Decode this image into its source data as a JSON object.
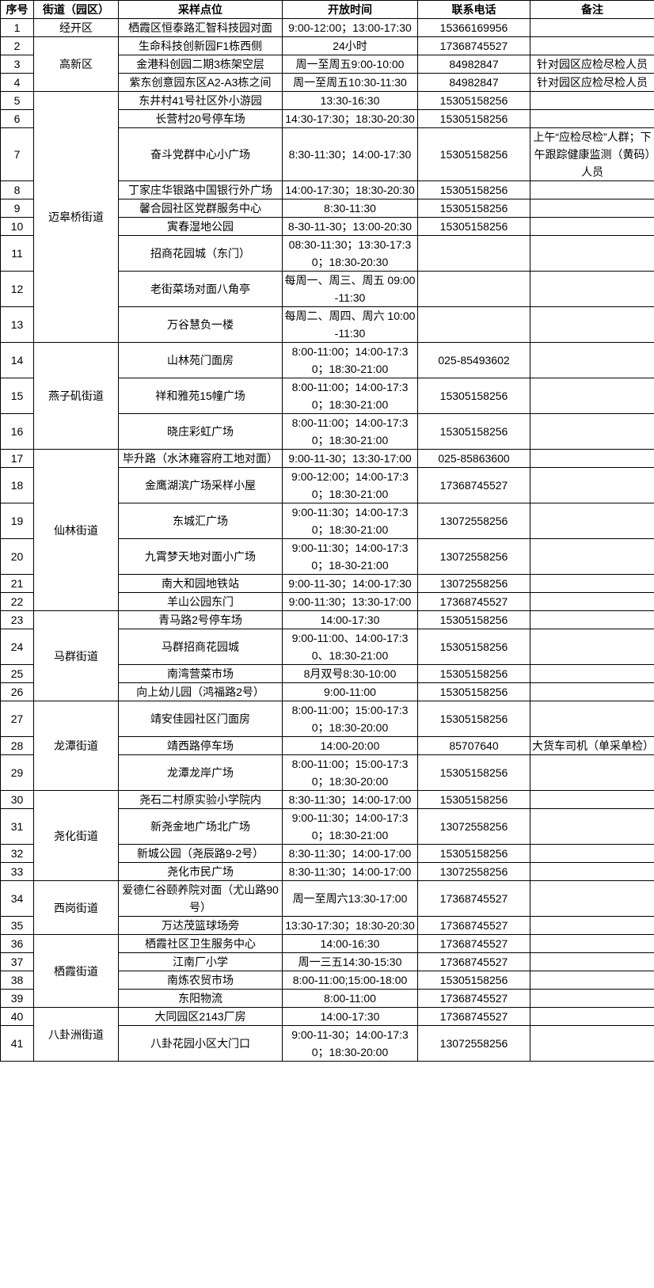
{
  "headers": [
    "序号",
    "街道（园区）",
    "采样点位",
    "开放时间",
    "联系电话",
    "备注"
  ],
  "groups": [
    {
      "district": "经开区",
      "rows": [
        {
          "no": "1",
          "site": "栖霞区恒泰路汇智科技园对面",
          "hours": "9:00-12:00；13:00-17:30",
          "phone": "15366169956",
          "note": ""
        }
      ]
    },
    {
      "district": "高新区",
      "rows": [
        {
          "no": "2",
          "site": "生命科技创新园F1栋西侧",
          "hours": "24小时",
          "phone": "17368745527",
          "note": ""
        },
        {
          "no": "3",
          "site": "金港科创园二期3栋架空层",
          "hours": "周一至周五9:00-10:00",
          "phone": "84982847",
          "note": "针对园区应检尽检人员"
        },
        {
          "no": "4",
          "site": "紫东创意园东区A2-A3栋之间",
          "hours": "周一至周五10:30-11:30",
          "phone": "84982847",
          "note": "针对园区应检尽检人员"
        }
      ]
    },
    {
      "district": "迈皋桥街道",
      "rows": [
        {
          "no": "5",
          "site": "东井村41号社区外小游园",
          "hours": "13:30-16:30",
          "phone": "15305158256",
          "note": ""
        },
        {
          "no": "6",
          "site": "长营村20号停车场",
          "hours": "14:30-17:30；18:30-20:30",
          "phone": "15305158256",
          "note": ""
        },
        {
          "no": "7",
          "site": "奋斗党群中心小广场",
          "hours": "8:30-11:30；14:00-17:30",
          "phone": "15305158256",
          "note": "上午“应检尽检”人群；下午跟踪健康监测（黄码）人员"
        },
        {
          "no": "8",
          "site": "丁家庄华银路中国银行外广场",
          "hours": "14:00-17:30；18:30-20:30",
          "phone": "15305158256",
          "note": ""
        },
        {
          "no": "9",
          "site": "馨合园社区党群服务中心",
          "hours": "8:30-11:30",
          "phone": "15305158256",
          "note": ""
        },
        {
          "no": "10",
          "site": "寅春湿地公园",
          "hours": "8-30-11-30；13:00-20:30",
          "phone": "15305158256",
          "note": ""
        },
        {
          "no": "11",
          "site": "招商花园城（东门）",
          "hours": "08:30-11:30；13:30-17:30；18:30-20:30",
          "phone": "",
          "note": ""
        },
        {
          "no": "12",
          "site": "老街菜场对面八角亭",
          "hours": "每周一、周三、周五 09:00-11:30",
          "phone": "",
          "note": ""
        },
        {
          "no": "13",
          "site": "万谷慧负一楼",
          "hours": "每周二、周四、周六 10:00-11:30",
          "phone": "",
          "note": ""
        }
      ]
    },
    {
      "district": "燕子矶街道",
      "rows": [
        {
          "no": "14",
          "site": "山林苑门面房",
          "hours": "8:00-11:00；14:00-17:30；18:30-21:00",
          "phone": "025-85493602",
          "note": ""
        },
        {
          "no": "15",
          "site": "祥和雅苑15幢广场",
          "hours": "8:00-11:00；14:00-17:30；18:30-21:00",
          "phone": "15305158256",
          "note": ""
        },
        {
          "no": "16",
          "site": "晓庄彩虹广场",
          "hours": "8:00-11:00；14:00-17:30；18:30-21:00",
          "phone": "15305158256",
          "note": ""
        }
      ]
    },
    {
      "district": "仙林街道",
      "rows": [
        {
          "no": "17",
          "site": "毕升路（水沐雍容府工地对面）",
          "hours": "9:00-11-30；13:30-17:00",
          "phone": "025-85863600",
          "note": ""
        },
        {
          "no": "18",
          "site": "金鹰湖滨广场采样小屋",
          "hours": "9:00-12:00；14:00-17:30；18:30-21:00",
          "phone": "17368745527",
          "note": ""
        },
        {
          "no": "19",
          "site": "东城汇广场",
          "hours": "9:00-11:30；14:00-17:30；18:30-21:00",
          "phone": "13072558256",
          "note": ""
        },
        {
          "no": "20",
          "site": "九霄梦天地对面小广场",
          "hours": "9:00-11:30；14:00-17:30；18-30-21:00",
          "phone": "13072558256",
          "note": ""
        },
        {
          "no": "21",
          "site": "南大和园地铁站",
          "hours": "9:00-11-30；14:00-17:30",
          "phone": "13072558256",
          "note": ""
        },
        {
          "no": "22",
          "site": "羊山公园东门",
          "hours": "9:00-11:30；13:30-17:00",
          "phone": "17368745527",
          "note": ""
        }
      ]
    },
    {
      "district": "马群街道",
      "rows": [
        {
          "no": "23",
          "site": "青马路2号停车场",
          "hours": "14:00-17:30",
          "phone": "15305158256",
          "note": ""
        },
        {
          "no": "24",
          "site": "马群招商花园城",
          "hours": "9:00-11:00、14:00-17:30、18:30-21:00",
          "phone": "15305158256",
          "note": ""
        },
        {
          "no": "25",
          "site": "南湾营菜市场",
          "hours": "8月双号8:30-10:00",
          "phone": "15305158256",
          "note": ""
        },
        {
          "no": "26",
          "site": "向上幼儿园（鸿福路2号）",
          "hours": "9:00-11:00",
          "phone": "15305158256",
          "note": ""
        }
      ]
    },
    {
      "district": "龙潭街道",
      "rows": [
        {
          "no": "27",
          "site": "靖安佳园社区门面房",
          "hours": "8:00-11:00；15:00-17:30；18:30-20:00",
          "phone": "15305158256",
          "note": ""
        },
        {
          "no": "28",
          "site": "靖西路停车场",
          "hours": "14:00-20:00",
          "phone": "85707640",
          "note": "大货车司机（单采单检）"
        },
        {
          "no": "29",
          "site": "龙潭龙岸广场",
          "hours": "8:00-11:00；15:00-17:30；18:30-20:00",
          "phone": "15305158256",
          "note": ""
        }
      ]
    },
    {
      "district": "尧化街道",
      "rows": [
        {
          "no": "30",
          "site": "尧石二村原实验小学院内",
          "hours": "8:30-11:30；14:00-17:00",
          "phone": "15305158256",
          "note": ""
        },
        {
          "no": "31",
          "site": "新尧金地广场北广场",
          "hours": "9:00-11:30；14:00-17:30；18:30-21:00",
          "phone": "13072558256",
          "note": ""
        },
        {
          "no": "32",
          "site": "新城公园（尧辰路9-2号）",
          "hours": "8:30-11:30；14:00-17:00",
          "phone": "15305158256",
          "note": ""
        },
        {
          "no": "33",
          "site": "尧化市民广场",
          "hours": "8:30-11:30；14:00-17:00",
          "phone": "13072558256",
          "note": ""
        }
      ]
    },
    {
      "district": "西岗街道",
      "rows": [
        {
          "no": "34",
          "site": "爱德仁谷颐养院对面（尤山路90号）",
          "hours": "周一至周六13:30-17:00",
          "phone": "17368745527",
          "note": ""
        },
        {
          "no": "35",
          "site": "万达茂篮球场旁",
          "hours": "13:30-17:30；18:30-20:30",
          "phone": "17368745527",
          "note": ""
        }
      ]
    },
    {
      "district": "栖霞街道",
      "rows": [
        {
          "no": "36",
          "site": "栖霞社区卫生服务中心",
          "hours": "14:00-16:30",
          "phone": "17368745527",
          "note": ""
        },
        {
          "no": "37",
          "site": "江南厂小学",
          "hours": "周一三五14:30-15:30",
          "phone": "17368745527",
          "note": ""
        },
        {
          "no": "38",
          "site": "南炼农贸市场",
          "hours": "8:00-11:00;15:00-18:00",
          "phone": "15305158256",
          "note": ""
        },
        {
          "no": "39",
          "site": "东阳物流",
          "hours": "8:00-11:00",
          "phone": "17368745527",
          "note": ""
        }
      ]
    },
    {
      "district": "八卦洲街道",
      "rows": [
        {
          "no": "40",
          "site": "大同园区2143厂房",
          "hours": "14:00-17:30",
          "phone": "17368745527",
          "note": ""
        },
        {
          "no": "41",
          "site": "八卦花园小区大门口",
          "hours": "9:00-11-30；14:00-17:30；18:30-20:00",
          "phone": "13072558256",
          "note": ""
        }
      ]
    }
  ]
}
